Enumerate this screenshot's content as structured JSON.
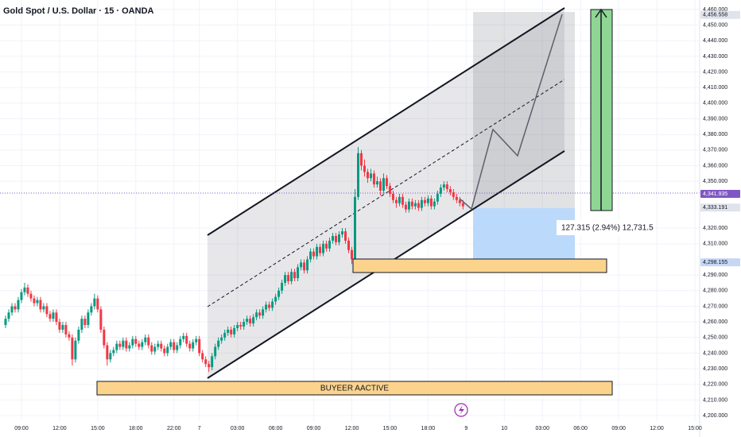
{
  "chart_data": {
    "type": "candlestick",
    "title": "Gold Spot / U.S. Dollar · 15 · OANDA",
    "series": [
      {
        "up_color": "#089981",
        "down_color": "#f23645",
        "ohlc": [
          [
            4258,
            4264,
            4256,
            4262
          ],
          [
            4262,
            4268,
            4260,
            4266
          ],
          [
            4266,
            4272,
            4264,
            4270
          ],
          [
            4270,
            4272,
            4266,
            4268
          ],
          [
            4268,
            4276,
            4266,
            4274
          ],
          [
            4274,
            4281,
            4272,
            4279
          ],
          [
            4279,
            4285,
            4277,
            4282
          ],
          [
            4282,
            4284,
            4276,
            4278
          ],
          [
            4278,
            4280,
            4273,
            4275
          ],
          [
            4275,
            4277,
            4270,
            4272
          ],
          [
            4272,
            4276,
            4270,
            4274
          ],
          [
            4274,
            4276,
            4266,
            4268
          ],
          [
            4268,
            4272,
            4266,
            4270
          ],
          [
            4270,
            4272,
            4263,
            4265
          ],
          [
            4265,
            4267,
            4260,
            4262
          ],
          [
            4262,
            4268,
            4260,
            4266
          ],
          [
            4266,
            4268,
            4258,
            4260
          ],
          [
            4260,
            4262,
            4253,
            4255
          ],
          [
            4255,
            4260,
            4253,
            4258
          ],
          [
            4258,
            4260,
            4250,
            4252
          ],
          [
            4252,
            4254,
            4248,
            4250
          ],
          [
            4250,
            4252,
            4232,
            4236
          ],
          [
            4236,
            4250,
            4234,
            4248
          ],
          [
            4248,
            4257,
            4246,
            4255
          ],
          [
            4255,
            4264,
            4253,
            4262
          ],
          [
            4262,
            4264,
            4256,
            4258
          ],
          [
            4258,
            4268,
            4256,
            4266
          ],
          [
            4266,
            4272,
            4264,
            4270
          ],
          [
            4270,
            4278,
            4268,
            4275
          ],
          [
            4275,
            4277,
            4266,
            4268
          ],
          [
            4268,
            4270,
            4253,
            4255
          ],
          [
            4255,
            4257,
            4243,
            4245
          ],
          [
            4245,
            4247,
            4232,
            4236
          ],
          [
            4236,
            4242,
            4234,
            4240
          ],
          [
            4240,
            4244,
            4238,
            4242
          ],
          [
            4242,
            4248,
            4240,
            4246
          ],
          [
            4246,
            4248,
            4242,
            4244
          ],
          [
            4244,
            4250,
            4242,
            4248
          ],
          [
            4248,
            4250,
            4241,
            4243
          ],
          [
            4243,
            4247,
            4241,
            4245
          ],
          [
            4245,
            4251,
            4243,
            4249
          ],
          [
            4249,
            4251,
            4244,
            4246
          ],
          [
            4246,
            4248,
            4242,
            4244
          ],
          [
            4244,
            4249,
            4242,
            4247
          ],
          [
            4247,
            4252,
            4245,
            4250
          ],
          [
            4250,
            4252,
            4243,
            4245
          ],
          [
            4245,
            4247,
            4239,
            4241
          ],
          [
            4241,
            4246,
            4239,
            4244
          ],
          [
            4244,
            4248,
            4242,
            4246
          ],
          [
            4246,
            4248,
            4241,
            4243
          ],
          [
            4243,
            4245,
            4238,
            4240
          ],
          [
            4240,
            4246,
            4238,
            4244
          ],
          [
            4244,
            4249,
            4242,
            4247
          ],
          [
            4247,
            4249,
            4240,
            4242
          ],
          [
            4242,
            4247,
            4240,
            4245
          ],
          [
            4245,
            4251,
            4243,
            4249
          ],
          [
            4249,
            4253,
            4247,
            4251
          ],
          [
            4251,
            4253,
            4244,
            4246
          ],
          [
            4246,
            4248,
            4241,
            4243
          ],
          [
            4243,
            4249,
            4241,
            4247
          ],
          [
            4247,
            4251,
            4245,
            4249
          ],
          [
            4249,
            4251,
            4238,
            4240
          ],
          [
            4240,
            4242,
            4234,
            4236
          ],
          [
            4236,
            4238,
            4231,
            4233
          ],
          [
            4233,
            4235,
            4228,
            4231
          ],
          [
            4231,
            4240,
            4229,
            4238
          ],
          [
            4238,
            4246,
            4236,
            4244
          ],
          [
            4244,
            4250,
            4242,
            4248
          ],
          [
            4248,
            4252,
            4246,
            4250
          ],
          [
            4250,
            4255,
            4248,
            4253
          ],
          [
            4253,
            4257,
            4251,
            4255
          ],
          [
            4255,
            4257,
            4250,
            4252
          ],
          [
            4252,
            4258,
            4250,
            4256
          ],
          [
            4256,
            4260,
            4254,
            4258
          ],
          [
            4258,
            4260,
            4255,
            4257
          ],
          [
            4257,
            4262,
            4255,
            4260
          ],
          [
            4260,
            4264,
            4258,
            4262
          ],
          [
            4262,
            4264,
            4257,
            4259
          ],
          [
            4259,
            4265,
            4257,
            4263
          ],
          [
            4263,
            4268,
            4261,
            4266
          ],
          [
            4266,
            4268,
            4262,
            4264
          ],
          [
            4264,
            4270,
            4262,
            4268
          ],
          [
            4268,
            4273,
            4266,
            4271
          ],
          [
            4271,
            4273,
            4267,
            4269
          ],
          [
            4269,
            4275,
            4267,
            4273
          ],
          [
            4273,
            4278,
            4271,
            4276
          ],
          [
            4276,
            4282,
            4274,
            4280
          ],
          [
            4280,
            4287,
            4278,
            4285
          ],
          [
            4285,
            4292,
            4283,
            4290
          ],
          [
            4290,
            4292,
            4284,
            4286
          ],
          [
            4286,
            4294,
            4284,
            4292
          ],
          [
            4292,
            4294,
            4286,
            4288
          ],
          [
            4288,
            4297,
            4286,
            4295
          ],
          [
            4295,
            4300,
            4293,
            4298
          ],
          [
            4298,
            4300,
            4291,
            4293
          ],
          [
            4293,
            4302,
            4291,
            4300
          ],
          [
            4300,
            4307,
            4298,
            4305
          ],
          [
            4305,
            4307,
            4300,
            4302
          ],
          [
            4302,
            4310,
            4300,
            4308
          ],
          [
            4308,
            4310,
            4302,
            4304
          ],
          [
            4304,
            4312,
            4302,
            4310
          ],
          [
            4310,
            4312,
            4305,
            4307
          ],
          [
            4307,
            4314,
            4305,
            4312
          ],
          [
            4312,
            4317,
            4310,
            4315
          ],
          [
            4315,
            4317,
            4309,
            4311
          ],
          [
            4311,
            4318,
            4309,
            4316
          ],
          [
            4316,
            4320,
            4314,
            4318
          ],
          [
            4318,
            4320,
            4310,
            4312
          ],
          [
            4312,
            4314,
            4304,
            4306
          ],
          [
            4306,
            4308,
            4297,
            4300
          ],
          [
            4300,
            4345,
            4298,
            4340
          ],
          [
            4340,
            4372,
            4338,
            4368
          ],
          [
            4368,
            4370,
            4357,
            4360
          ],
          [
            4360,
            4364,
            4353,
            4356
          ],
          [
            4356,
            4358,
            4349,
            4352
          ],
          [
            4352,
            4358,
            4350,
            4355
          ],
          [
            4355,
            4357,
            4346,
            4348
          ],
          [
            4348,
            4353,
            4346,
            4350
          ],
          [
            4350,
            4352,
            4341,
            4344
          ],
          [
            4344,
            4355,
            4342,
            4352
          ],
          [
            4352,
            4354,
            4345,
            4347
          ],
          [
            4347,
            4349,
            4340,
            4342
          ],
          [
            4342,
            4344,
            4336,
            4338
          ],
          [
            4338,
            4340,
            4333,
            4336
          ],
          [
            4336,
            4342,
            4334,
            4340
          ],
          [
            4340,
            4342,
            4333,
            4335
          ],
          [
            4335,
            4337,
            4330,
            4332
          ],
          [
            4332,
            4339,
            4330,
            4337
          ],
          [
            4337,
            4339,
            4332,
            4334
          ],
          [
            4334,
            4338,
            4332,
            4336
          ],
          [
            4336,
            4338,
            4331,
            4333
          ],
          [
            4333,
            4340,
            4331,
            4338
          ],
          [
            4338,
            4340,
            4334,
            4336
          ],
          [
            4336,
            4341,
            4334,
            4339
          ],
          [
            4339,
            4341,
            4332,
            4334
          ],
          [
            4334,
            4339,
            4332,
            4337
          ],
          [
            4337,
            4344,
            4335,
            4342
          ],
          [
            4342,
            4348,
            4340,
            4346
          ],
          [
            4346,
            4350,
            4344,
            4348
          ],
          [
            4348,
            4350,
            4343,
            4345
          ],
          [
            4345,
            4347,
            4341,
            4343
          ],
          [
            4343,
            4345,
            4338,
            4340
          ],
          [
            4340,
            4342,
            4336,
            4338
          ],
          [
            4338,
            4340,
            4334,
            4336
          ],
          [
            4336,
            4338,
            4332,
            4334
          ]
        ]
      }
    ],
    "ylim": [
      4198,
      4462
    ],
    "yticks": [
      {
        "value": 4200,
        "label": "4,200.000"
      },
      {
        "value": 4210,
        "label": "4,210.000"
      },
      {
        "value": 4220,
        "label": "4,220.000"
      },
      {
        "value": 4230,
        "label": "4,230.000"
      },
      {
        "value": 4240,
        "label": "4,240.000"
      },
      {
        "value": 4250,
        "label": "4,250.000"
      },
      {
        "value": 4260,
        "label": "4,260.000"
      },
      {
        "value": 4270,
        "label": "4,270.000"
      },
      {
        "value": 4280,
        "label": "4,280.000"
      },
      {
        "value": 4290,
        "label": "4,290.000"
      },
      {
        "value": 4310,
        "label": "4,310.000"
      },
      {
        "value": 4320,
        "label": "4,320.000"
      },
      {
        "value": 4350,
        "label": "4,350.000"
      },
      {
        "value": 4360,
        "label": "4,360.000"
      },
      {
        "value": 4370,
        "label": "4,370.000"
      },
      {
        "value": 4380,
        "label": "4,380.000"
      },
      {
        "value": 4390,
        "label": "4,390.000"
      },
      {
        "value": 4400,
        "label": "4,400.000"
      },
      {
        "value": 4410,
        "label": "4,410.000"
      },
      {
        "value": 4420,
        "label": "4,420.000"
      },
      {
        "value": 4430,
        "label": "4,430.000"
      },
      {
        "value": 4440,
        "label": "4,440.000"
      },
      {
        "value": 4450,
        "label": "4,450.000"
      },
      {
        "value": 4460,
        "label": "4,460.000"
      }
    ],
    "xlim": [
      -0.5,
      218.5
    ],
    "xticks": [
      {
        "value": 5,
        "label": "09:00"
      },
      {
        "value": 17,
        "label": "12:00"
      },
      {
        "value": 29,
        "label": "15:00"
      },
      {
        "value": 41,
        "label": "18:00"
      },
      {
        "value": 53,
        "label": "22:00"
      },
      {
        "value": 61,
        "label": "7"
      },
      {
        "value": 73,
        "label": "03:00"
      },
      {
        "value": 85,
        "label": "06:00"
      },
      {
        "value": 97,
        "label": "09:00"
      },
      {
        "value": 109,
        "label": "12:00"
      },
      {
        "value": 121,
        "label": "15:00"
      },
      {
        "value": 133,
        "label": "18:00"
      },
      {
        "value": 145,
        "label": "9"
      },
      {
        "value": 157,
        "label": "10"
      },
      {
        "value": 169,
        "label": "03:00"
      },
      {
        "value": 181,
        "label": "06:00"
      },
      {
        "value": 193,
        "label": "09:00"
      },
      {
        "value": 205,
        "label": "12:00"
      },
      {
        "value": 217,
        "label": "15:00"
      }
    ],
    "grid": true,
    "price_labels": [
      {
        "value": 4456.558,
        "label": "4,456.558",
        "color": "#e0e3eb"
      },
      {
        "value": 4341.935,
        "label": "4,341.935",
        "color": "#7e57c2"
      },
      {
        "value": 4333.191,
        "label": "4,333.191",
        "color": "#e0e3eb"
      },
      {
        "value": 4298.155,
        "label": "4,298.155",
        "color": "#c5d7f5"
      }
    ],
    "annotations": {
      "zone_label": "BUYEER AACTIVE",
      "measure": "127.315 (2.94%) 12,731.5"
    }
  }
}
